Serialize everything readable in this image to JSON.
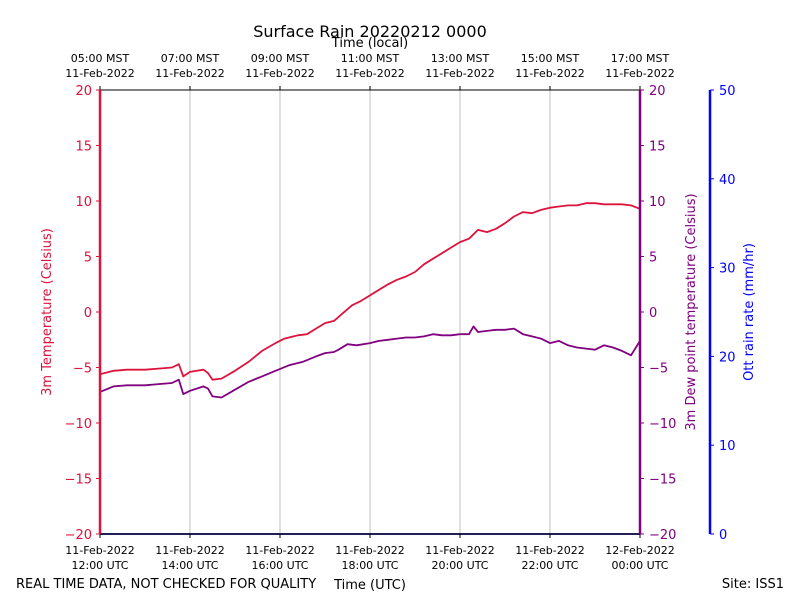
{
  "chart_data": {
    "type": "line",
    "title": "Surface Rain 20220212 0000",
    "top_axis_label": "Time (local)",
    "xlabel": "Time (UTC)",
    "x_range_hours_utc": [
      12,
      24
    ],
    "x_ticks_utc": [
      {
        "hour": 12,
        "line1": "11-Feb-2022",
        "line2": "12:00 UTC"
      },
      {
        "hour": 14,
        "line1": "11-Feb-2022",
        "line2": "14:00 UTC"
      },
      {
        "hour": 16,
        "line1": "11-Feb-2022",
        "line2": "16:00 UTC"
      },
      {
        "hour": 18,
        "line1": "11-Feb-2022",
        "line2": "18:00 UTC"
      },
      {
        "hour": 20,
        "line1": "11-Feb-2022",
        "line2": "20:00 UTC"
      },
      {
        "hour": 22,
        "line1": "11-Feb-2022",
        "line2": "22:00 UTC"
      },
      {
        "hour": 24,
        "line1": "12-Feb-2022",
        "line2": "00:00 UTC"
      }
    ],
    "x_ticks_local": [
      {
        "hour": 12,
        "line1": "05:00 MST",
        "line2": "11-Feb-2022"
      },
      {
        "hour": 14,
        "line1": "07:00 MST",
        "line2": "11-Feb-2022"
      },
      {
        "hour": 16,
        "line1": "09:00 MST",
        "line2": "11-Feb-2022"
      },
      {
        "hour": 18,
        "line1": "11:00 MST",
        "line2": "11-Feb-2022"
      },
      {
        "hour": 20,
        "line1": "13:00 MST",
        "line2": "11-Feb-2022"
      },
      {
        "hour": 22,
        "line1": "15:00 MST",
        "line2": "11-Feb-2022"
      },
      {
        "hour": 24,
        "line1": "17:00 MST",
        "line2": "11-Feb-2022"
      }
    ],
    "ylabel_left": "3m Temperature (Celsius)",
    "ylabel_right": "3m Dew point temperature (Celsius)",
    "ylabel_rain": "Ott rain rate (mm/hr)",
    "ylim_temp": [
      -20,
      20
    ],
    "yticks_temp": [
      -20,
      -15,
      -10,
      -5,
      0,
      5,
      10,
      15,
      20
    ],
    "ylim_rain": [
      0,
      50
    ],
    "yticks_rain": [
      0,
      10,
      20,
      30,
      40,
      50
    ],
    "grid_x": true,
    "series": [
      {
        "name": "3m Temperature",
        "color": "#dc143c",
        "points": [
          [
            12.0,
            -5.6
          ],
          [
            12.3,
            -5.3
          ],
          [
            12.6,
            -5.2
          ],
          [
            13.0,
            -5.2
          ],
          [
            13.3,
            -5.1
          ],
          [
            13.6,
            -5.0
          ],
          [
            13.75,
            -4.7
          ],
          [
            13.85,
            -5.8
          ],
          [
            14.0,
            -5.4
          ],
          [
            14.3,
            -5.2
          ],
          [
            14.4,
            -5.5
          ],
          [
            14.5,
            -6.1
          ],
          [
            14.7,
            -6.0
          ],
          [
            15.0,
            -5.3
          ],
          [
            15.3,
            -4.5
          ],
          [
            15.6,
            -3.5
          ],
          [
            15.9,
            -2.8
          ],
          [
            16.1,
            -2.4
          ],
          [
            16.4,
            -2.1
          ],
          [
            16.6,
            -2.0
          ],
          [
            16.8,
            -1.5
          ],
          [
            17.0,
            -1.0
          ],
          [
            17.2,
            -0.8
          ],
          [
            17.4,
            -0.1
          ],
          [
            17.6,
            0.6
          ],
          [
            17.8,
            1.0
          ],
          [
            18.0,
            1.5
          ],
          [
            18.2,
            2.0
          ],
          [
            18.4,
            2.5
          ],
          [
            18.6,
            2.9
          ],
          [
            18.8,
            3.2
          ],
          [
            19.0,
            3.6
          ],
          [
            19.2,
            4.3
          ],
          [
            19.4,
            4.8
          ],
          [
            19.6,
            5.3
          ],
          [
            19.8,
            5.8
          ],
          [
            20.0,
            6.3
          ],
          [
            20.2,
            6.6
          ],
          [
            20.4,
            7.4
          ],
          [
            20.6,
            7.2
          ],
          [
            20.8,
            7.5
          ],
          [
            21.0,
            8.0
          ],
          [
            21.2,
            8.6
          ],
          [
            21.4,
            9.0
          ],
          [
            21.6,
            8.9
          ],
          [
            21.8,
            9.2
          ],
          [
            22.0,
            9.4
          ],
          [
            22.2,
            9.5
          ],
          [
            22.4,
            9.6
          ],
          [
            22.6,
            9.6
          ],
          [
            22.8,
            9.8
          ],
          [
            23.0,
            9.8
          ],
          [
            23.2,
            9.7
          ],
          [
            23.4,
            9.7
          ],
          [
            23.6,
            9.7
          ],
          [
            23.8,
            9.6
          ],
          [
            24.0,
            9.3
          ]
        ]
      },
      {
        "name": "3m Dew point",
        "color": "#800080",
        "points": [
          [
            12.0,
            -7.2
          ],
          [
            12.3,
            -6.7
          ],
          [
            12.6,
            -6.6
          ],
          [
            13.0,
            -6.6
          ],
          [
            13.3,
            -6.5
          ],
          [
            13.6,
            -6.4
          ],
          [
            13.75,
            -6.1
          ],
          [
            13.85,
            -7.4
          ],
          [
            14.0,
            -7.1
          ],
          [
            14.3,
            -6.7
          ],
          [
            14.4,
            -6.9
          ],
          [
            14.5,
            -7.6
          ],
          [
            14.7,
            -7.7
          ],
          [
            15.0,
            -7.0
          ],
          [
            15.3,
            -6.3
          ],
          [
            15.6,
            -5.8
          ],
          [
            15.9,
            -5.3
          ],
          [
            16.2,
            -4.8
          ],
          [
            16.5,
            -4.5
          ],
          [
            16.8,
            -4.0
          ],
          [
            17.0,
            -3.7
          ],
          [
            17.2,
            -3.6
          ],
          [
            17.3,
            -3.4
          ],
          [
            17.5,
            -2.9
          ],
          [
            17.7,
            -3.0
          ],
          [
            18.0,
            -2.8
          ],
          [
            18.2,
            -2.6
          ],
          [
            18.4,
            -2.5
          ],
          [
            18.6,
            -2.4
          ],
          [
            18.8,
            -2.3
          ],
          [
            19.0,
            -2.3
          ],
          [
            19.2,
            -2.2
          ],
          [
            19.4,
            -2.0
          ],
          [
            19.6,
            -2.1
          ],
          [
            19.8,
            -2.1
          ],
          [
            20.0,
            -2.0
          ],
          [
            20.2,
            -2.0
          ],
          [
            20.3,
            -1.3
          ],
          [
            20.4,
            -1.8
          ],
          [
            20.6,
            -1.7
          ],
          [
            20.8,
            -1.6
          ],
          [
            21.0,
            -1.6
          ],
          [
            21.2,
            -1.5
          ],
          [
            21.4,
            -2.0
          ],
          [
            21.6,
            -2.2
          ],
          [
            21.8,
            -2.4
          ],
          [
            22.0,
            -2.8
          ],
          [
            22.2,
            -2.6
          ],
          [
            22.4,
            -3.0
          ],
          [
            22.6,
            -3.2
          ],
          [
            22.8,
            -3.3
          ],
          [
            23.0,
            -3.4
          ],
          [
            23.2,
            -3.0
          ],
          [
            23.4,
            -3.2
          ],
          [
            23.6,
            -3.5
          ],
          [
            23.8,
            -3.9
          ],
          [
            24.0,
            -2.6
          ]
        ]
      },
      {
        "name": "Ott rain rate",
        "color": "#00008b",
        "points": [
          [
            12.0,
            0
          ],
          [
            24.0,
            0
          ]
        ]
      }
    ]
  },
  "footer": {
    "disclaimer": "REAL TIME DATA, NOT CHECKED FOR QUALITY",
    "site": "Site: ISS1"
  },
  "colors": {
    "temp_axis": "#dc143c",
    "dew_axis": "#800080",
    "rain_axis": "#0000ff"
  }
}
